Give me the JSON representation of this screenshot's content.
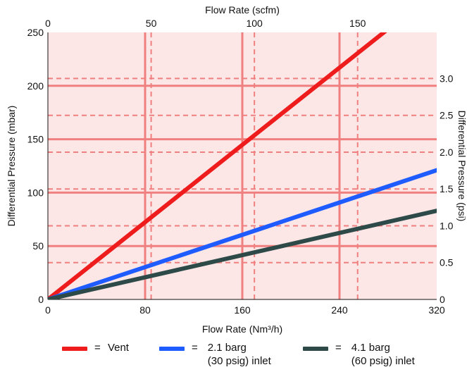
{
  "chart_data": {
    "type": "line",
    "title": "",
    "xlabel": "Flow Rate (Nm³/h)",
    "x2label": "Flow Rate (scfm)",
    "ylabel": "Differential Pressure (mbar)",
    "y2label": "Differential Pressure (psi)",
    "xlim": [
      0,
      320
    ],
    "ylim": [
      0,
      250
    ],
    "x2lim": [
      0,
      188.3
    ],
    "y2lim": [
      0,
      3.626
    ],
    "x_ticks": [
      0,
      80,
      160,
      240,
      320
    ],
    "x_tick_labels": [
      "0",
      "80",
      "160",
      "240",
      "320"
    ],
    "y_ticks": [
      0,
      50,
      100,
      150,
      200,
      250
    ],
    "y_tick_labels": [
      "0",
      "50",
      "100",
      "150",
      "200",
      "250"
    ],
    "x2_ticks": [
      0,
      50,
      100,
      150
    ],
    "x2_tick_labels": [
      "0",
      "50",
      "100",
      "150"
    ],
    "y2_ticks": [
      0,
      0.5,
      1.0,
      1.5,
      2.0,
      2.5,
      3.0
    ],
    "y2_tick_labels": [
      "0",
      "0.5",
      "1.0",
      "1.5",
      "2.0",
      "2.5",
      "3.0"
    ],
    "grid": true,
    "legend_position": "bottom",
    "background_color": "#fde6e6",
    "grid_color": "#f08080",
    "series": [
      {
        "name": "Vent",
        "legend_prefix": "= ",
        "color": "#ee1c1c",
        "x": [
          0,
          282
        ],
        "y": [
          0,
          255
        ]
      },
      {
        "name": "2.1 barg\n(30 psig) inlet",
        "legend_prefix": "=",
        "color": "#1e5cff",
        "x": [
          0,
          320
        ],
        "y": [
          0,
          121
        ]
      },
      {
        "name": "4.1 barg\n(60 psig) inlet",
        "legend_prefix": "=",
        "color": "#2e4a48",
        "x": [
          0,
          320
        ],
        "y": [
          0,
          83
        ]
      }
    ]
  }
}
